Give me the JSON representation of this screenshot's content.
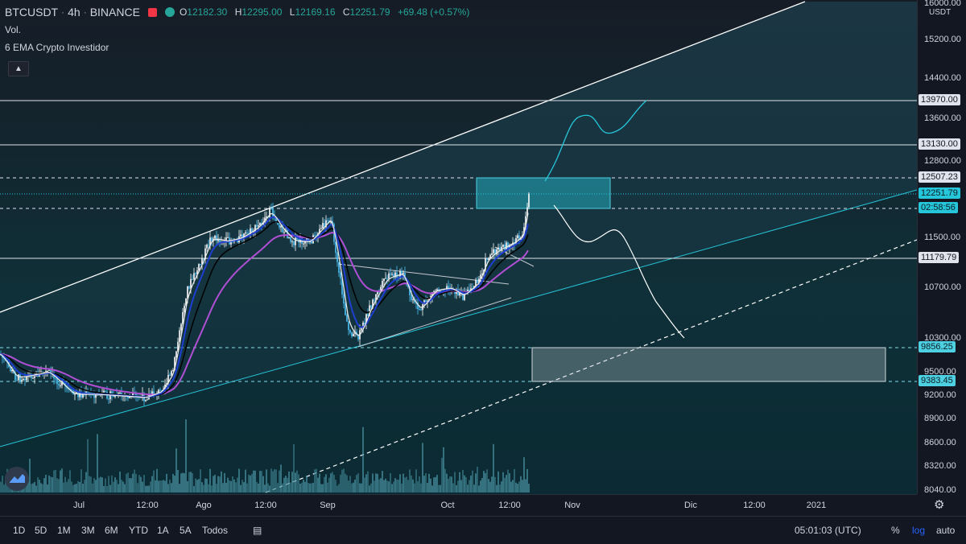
{
  "legend": {
    "symbol": "BTCUSDT",
    "interval": "4h",
    "exchange": "BINANCE",
    "ohlc": [
      {
        "k": "O",
        "v": "12182.30"
      },
      {
        "k": "H",
        "v": "12295.00"
      },
      {
        "k": "L",
        "v": "12169.16"
      },
      {
        "k": "C",
        "v": "12251.79"
      },
      {
        "k": "",
        "v": "+69.48 (+0.57%)"
      }
    ],
    "volume_label": "Vol.",
    "indicator_label": "6 EMA Crypto Investidor",
    "collapse_icon": "chevron-up-icon"
  },
  "price_axis": {
    "currency": "USDT",
    "ticks": [
      "16000.00",
      "15200.00",
      "14400.00",
      "13600.00",
      "12800.00",
      "11500.00",
      "10700.00",
      "10300.00",
      "9500.00",
      "9200.00",
      "8900.00",
      "8600.00",
      "8320.00",
      "8040.00"
    ],
    "tags": [
      {
        "text": "13970.00",
        "type": "line"
      },
      {
        "text": "13130.00",
        "type": "line"
      },
      {
        "text": "12507.23",
        "type": "dashed"
      },
      {
        "text": "12251.79",
        "type": "last"
      },
      {
        "text": "02:58:56",
        "type": "countdown"
      },
      {
        "text": "11179.79",
        "type": "line"
      },
      {
        "text": "9856.25",
        "type": "dashed"
      },
      {
        "text": "9383.45",
        "type": "dashed"
      }
    ]
  },
  "time_axis": {
    "labels": [
      "Jul",
      "12:00",
      "Ago",
      "12:00",
      "Sep",
      "Oct",
      "12:00",
      "Nov",
      "Dic",
      "12:00",
      "2021"
    ]
  },
  "bottom_bar": {
    "timeframes": [
      "1D",
      "5D",
      "1M",
      "3M",
      "6M",
      "YTD",
      "1A",
      "5A",
      "Todos"
    ],
    "time": "05:01:03 (UTC)",
    "percent": "%",
    "log": "log",
    "auto": "auto"
  },
  "colors": {
    "background": "#131722",
    "accent": "#2962ff",
    "teal": "#26c6da",
    "up": "#26a69a"
  }
}
